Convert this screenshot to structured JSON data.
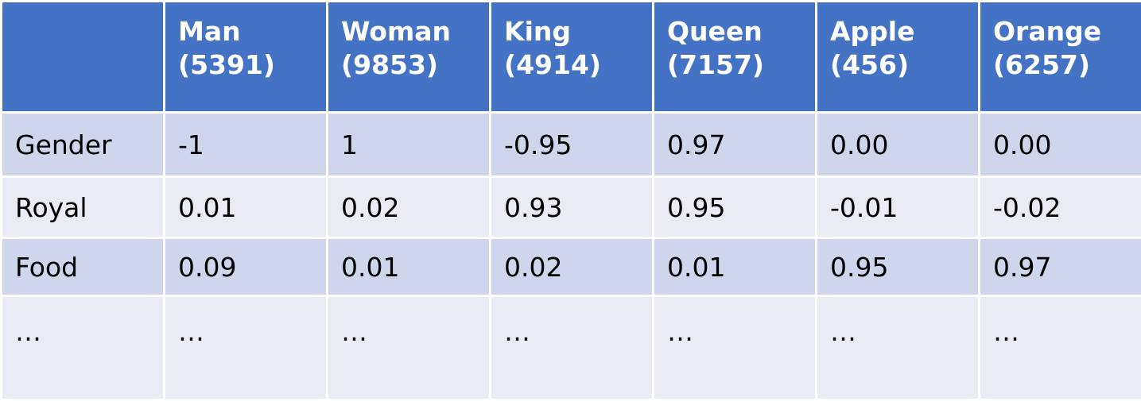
{
  "table": {
    "columns": [
      {
        "word": "",
        "index": ""
      },
      {
        "word": "Man",
        "index": "(5391)"
      },
      {
        "word": "Woman",
        "index": "(9853)"
      },
      {
        "word": "King",
        "index": "(4914)"
      },
      {
        "word": "Queen",
        "index": "(7157)"
      },
      {
        "word": "Apple",
        "index": "(456)"
      },
      {
        "word": "Orange",
        "index": "(6257)"
      }
    ],
    "rows": [
      {
        "label": "Gender",
        "values": [
          "-1",
          "1",
          "-0.95",
          "0.97",
          "0.00",
          "0.00"
        ]
      },
      {
        "label": "Royal",
        "values": [
          "0.01",
          "0.02",
          "0.93",
          "0.95",
          "-0.01",
          "-0.02"
        ]
      },
      {
        "label": "Food",
        "values": [
          "0.09",
          "0.01",
          "0.02",
          "0.01",
          "0.95",
          "0.97"
        ]
      },
      {
        "label": "…",
        "values": [
          "…",
          "…",
          "…",
          "…",
          "…",
          "…"
        ]
      }
    ]
  },
  "colors": {
    "header_bg": "#4472c4",
    "row_odd_bg": "#cfd5ea",
    "row_even_bg": "#e9ebf5"
  }
}
